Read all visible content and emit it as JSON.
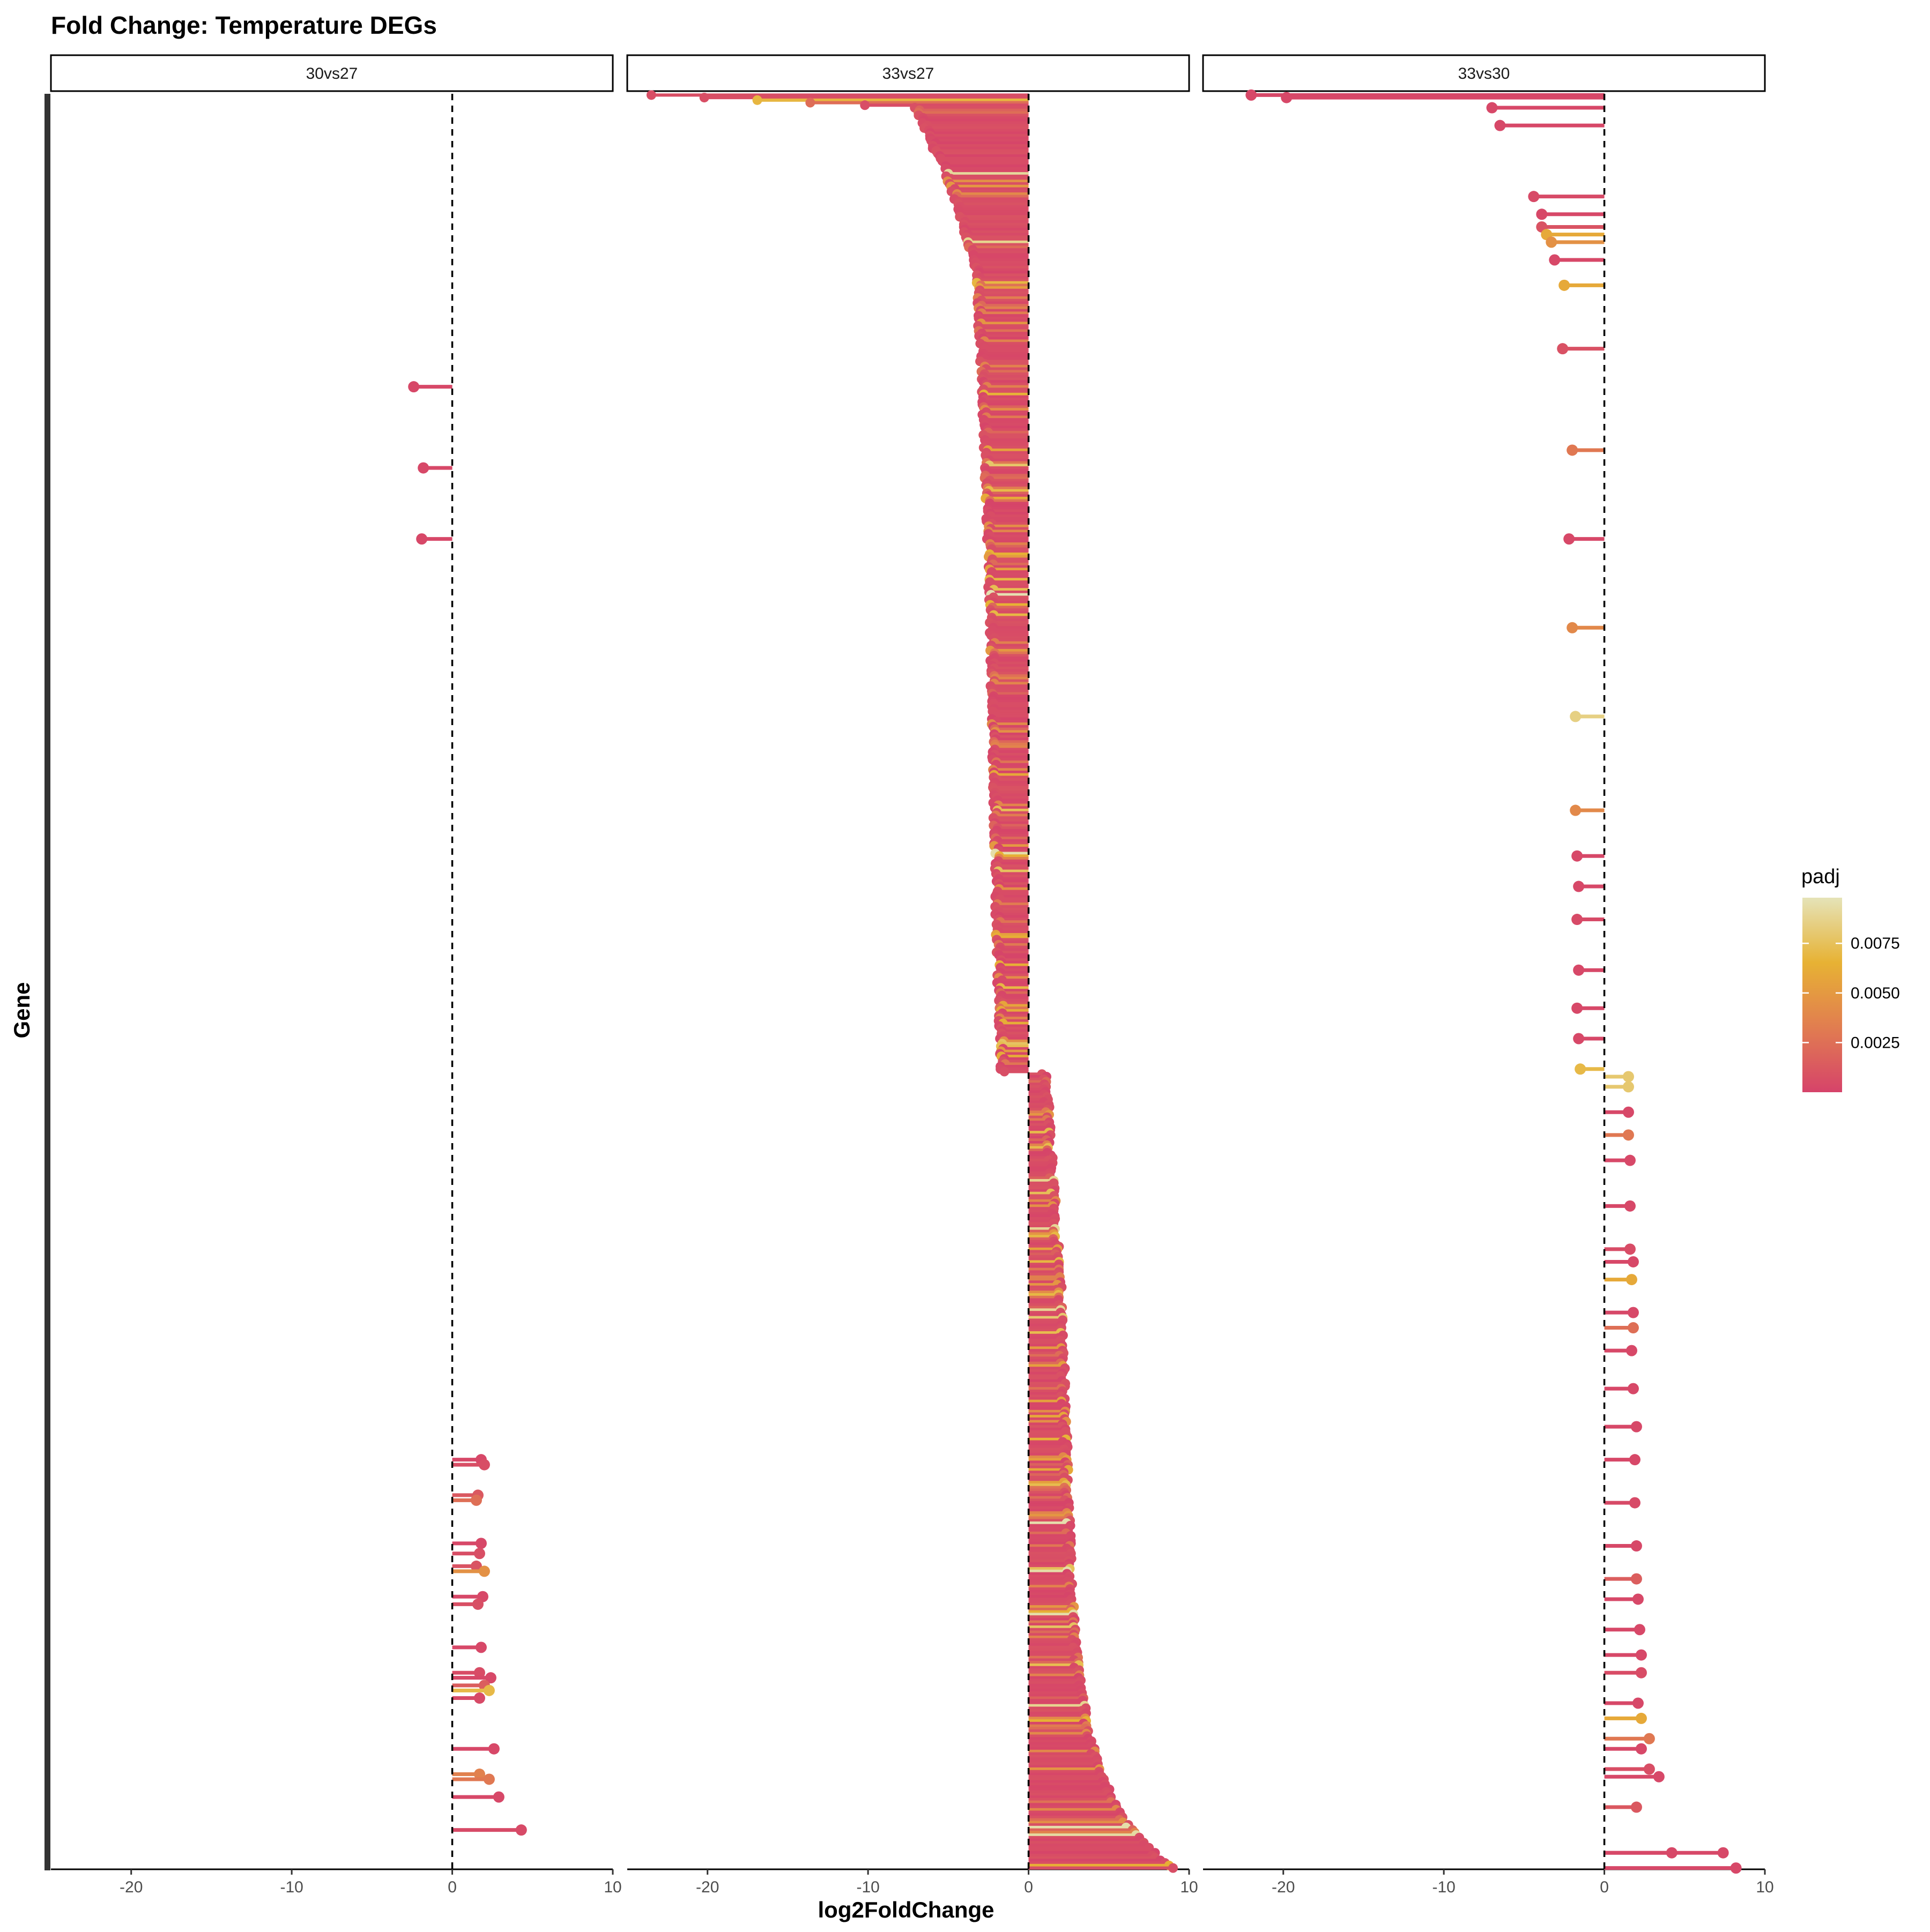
{
  "chart_data": {
    "type": "lollipop",
    "title": "Fold Change: Temperature DEGs",
    "xlabel": "log2FoldChange",
    "ylabel": "Gene",
    "xlim": [
      -25,
      10
    ],
    "x_ticks": [
      "-20",
      "-10",
      "0",
      "10"
    ],
    "x_tick_values": [
      -20,
      -10,
      0,
      10
    ],
    "reference_line_x": 0,
    "gene_count": 700,
    "legend": {
      "title": "padj",
      "range": [
        0,
        0.0098
      ],
      "ticks": [
        "0.0025",
        "0.0050",
        "0.0075"
      ],
      "tick_values": [
        0.0025,
        0.005,
        0.0075
      ],
      "colors": [
        "#d6436a",
        "#e17d50",
        "#e7b234",
        "#e5e3b8"
      ],
      "position": "right"
    },
    "panels": [
      {
        "name": "30vs27",
        "points": [
          {
            "y": 115,
            "x": -2.4,
            "padj": 0.0003
          },
          {
            "y": 147,
            "x": -1.8,
            "padj": 0.0003
          },
          {
            "y": 175,
            "x": -1.9,
            "padj": 0.0003
          },
          {
            "y": 538,
            "x": 1.8,
            "padj": 0.0003
          },
          {
            "y": 540,
            "x": 2.0,
            "padj": 0.0006
          },
          {
            "y": 552,
            "x": 1.6,
            "padj": 0.0012
          },
          {
            "y": 554,
            "x": 1.5,
            "padj": 0.0025
          },
          {
            "y": 571,
            "x": 1.8,
            "padj": 0.0003
          },
          {
            "y": 575,
            "x": 1.7,
            "padj": 0.0006
          },
          {
            "y": 580,
            "x": 1.5,
            "padj": 0.0009
          },
          {
            "y": 582,
            "x": 2.0,
            "padj": 0.0045
          },
          {
            "y": 592,
            "x": 1.9,
            "padj": 0.0003
          },
          {
            "y": 595,
            "x": 1.6,
            "padj": 0.0007
          },
          {
            "y": 612,
            "x": 1.8,
            "padj": 0.0003
          },
          {
            "y": 622,
            "x": 1.7,
            "padj": 0.0005
          },
          {
            "y": 624,
            "x": 2.4,
            "padj": 0.0003
          },
          {
            "y": 627,
            "x": 2.0,
            "padj": 0.0015
          },
          {
            "y": 629,
            "x": 2.3,
            "padj": 0.007
          },
          {
            "y": 632,
            "x": 1.7,
            "padj": 0.0004
          },
          {
            "y": 652,
            "x": 2.6,
            "padj": 0.0003
          },
          {
            "y": 662,
            "x": 1.7,
            "padj": 0.0035
          },
          {
            "y": 664,
            "x": 2.3,
            "padj": 0.003
          },
          {
            "y": 671,
            "x": 2.9,
            "padj": 0.0003
          },
          {
            "y": 684,
            "x": 4.3,
            "padj": 0.0004
          }
        ]
      },
      {
        "name": "33vs27",
        "sorted_profile": [
          [
            0,
            -23.5
          ],
          [
            5,
            -7
          ],
          [
            25,
            -5.5
          ],
          [
            40,
            -4.5
          ],
          [
            70,
            -3.2
          ],
          [
            110,
            -2.8
          ],
          [
            180,
            -2.4
          ],
          [
            260,
            -2.1
          ],
          [
            330,
            -1.9
          ],
          [
            385,
            -1.6
          ],
          [
            386,
            1.0
          ],
          [
            480,
            2.0
          ],
          [
            540,
            2.3
          ],
          [
            590,
            2.6
          ],
          [
            620,
            3.0
          ],
          [
            640,
            3.5
          ],
          [
            660,
            4.3
          ],
          [
            680,
            5.8
          ],
          [
            695,
            8.0
          ],
          [
            699,
            9.0
          ]
        ]
      },
      {
        "name": "33vs30",
        "points": [
          {
            "y": 0,
            "x": -22.0,
            "padj": 0.0003
          },
          {
            "y": 1,
            "x": -19.8,
            "padj": 0.0003
          },
          {
            "y": 5,
            "x": -7.0,
            "padj": 0.0003
          },
          {
            "y": 12,
            "x": -6.5,
            "padj": 0.0003
          },
          {
            "y": 40,
            "x": -4.4,
            "padj": 0.0004
          },
          {
            "y": 47,
            "x": -3.9,
            "padj": 0.0003
          },
          {
            "y": 52,
            "x": -3.9,
            "padj": 0.0009
          },
          {
            "y": 55,
            "x": -3.6,
            "padj": 0.006
          },
          {
            "y": 58,
            "x": -3.3,
            "padj": 0.0045
          },
          {
            "y": 65,
            "x": -3.1,
            "padj": 0.0003
          },
          {
            "y": 75,
            "x": -2.5,
            "padj": 0.006
          },
          {
            "y": 100,
            "x": -2.6,
            "padj": 0.0008
          },
          {
            "y": 140,
            "x": -2.0,
            "padj": 0.003
          },
          {
            "y": 175,
            "x": -2.2,
            "padj": 0.0003
          },
          {
            "y": 210,
            "x": -2.0,
            "padj": 0.004
          },
          {
            "y": 245,
            "x": -1.8,
            "padj": 0.0085
          },
          {
            "y": 282,
            "x": -1.8,
            "padj": 0.004
          },
          {
            "y": 300,
            "x": -1.7,
            "padj": 0.0003
          },
          {
            "y": 312,
            "x": -1.6,
            "padj": 0.0003
          },
          {
            "y": 325,
            "x": -1.7,
            "padj": 0.0004
          },
          {
            "y": 345,
            "x": -1.6,
            "padj": 0.0003
          },
          {
            "y": 360,
            "x": -1.7,
            "padj": 0.0003
          },
          {
            "y": 372,
            "x": -1.6,
            "padj": 0.0003
          },
          {
            "y": 384,
            "x": -1.5,
            "padj": 0.007
          },
          {
            "y": 387,
            "x": 1.5,
            "padj": 0.008
          },
          {
            "y": 391,
            "x": 1.5,
            "padj": 0.008
          },
          {
            "y": 401,
            "x": 1.5,
            "padj": 0.0003
          },
          {
            "y": 410,
            "x": 1.5,
            "padj": 0.003
          },
          {
            "y": 420,
            "x": 1.6,
            "padj": 0.0003
          },
          {
            "y": 438,
            "x": 1.6,
            "padj": 0.0003
          },
          {
            "y": 455,
            "x": 1.6,
            "padj": 0.0005
          },
          {
            "y": 460,
            "x": 1.8,
            "padj": 0.0003
          },
          {
            "y": 467,
            "x": 1.7,
            "padj": 0.006
          },
          {
            "y": 480,
            "x": 1.8,
            "padj": 0.0003
          },
          {
            "y": 486,
            "x": 1.8,
            "padj": 0.0025
          },
          {
            "y": 495,
            "x": 1.7,
            "padj": 0.0003
          },
          {
            "y": 510,
            "x": 1.8,
            "padj": 0.0003
          },
          {
            "y": 525,
            "x": 2.0,
            "padj": 0.0003
          },
          {
            "y": 538,
            "x": 1.9,
            "padj": 0.0003
          },
          {
            "y": 555,
            "x": 1.9,
            "padj": 0.0004
          },
          {
            "y": 572,
            "x": 2.0,
            "padj": 0.0003
          },
          {
            "y": 585,
            "x": 2.0,
            "padj": 0.0015
          },
          {
            "y": 593,
            "x": 2.1,
            "padj": 0.0003
          },
          {
            "y": 605,
            "x": 2.2,
            "padj": 0.0003
          },
          {
            "y": 615,
            "x": 2.3,
            "padj": 0.0003
          },
          {
            "y": 622,
            "x": 2.3,
            "padj": 0.0005
          },
          {
            "y": 634,
            "x": 2.1,
            "padj": 0.0003
          },
          {
            "y": 640,
            "x": 2.3,
            "padj": 0.006
          },
          {
            "y": 648,
            "x": 2.8,
            "padj": 0.003
          },
          {
            "y": 652,
            "x": 2.3,
            "padj": 0.0003
          },
          {
            "y": 660,
            "x": 2.8,
            "padj": 0.0006
          },
          {
            "y": 663,
            "x": 3.4,
            "padj": 0.0003
          },
          {
            "y": 675,
            "x": 2.0,
            "padj": 0.0012
          },
          {
            "y": 693,
            "x": 7.4,
            "padj": 0.0003
          },
          {
            "y": 693,
            "x": 4.2,
            "padj": 0.0003
          },
          {
            "y": 699,
            "x": 8.2,
            "padj": 0.0003
          }
        ]
      }
    ]
  }
}
